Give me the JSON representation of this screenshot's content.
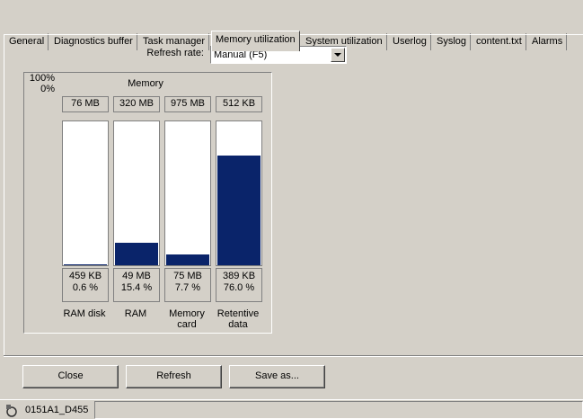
{
  "tabs": [
    {
      "label": "General",
      "selected": false
    },
    {
      "label": "Diagnostics buffer",
      "selected": false
    },
    {
      "label": "Task manager",
      "selected": false
    },
    {
      "label": "Memory utilization",
      "selected": true
    },
    {
      "label": "System utilization",
      "selected": false
    },
    {
      "label": "Userlog",
      "selected": false
    },
    {
      "label": "Syslog",
      "selected": false
    },
    {
      "label": "content.txt",
      "selected": false
    },
    {
      "label": "Alarms",
      "selected": false
    }
  ],
  "refresh_rate": {
    "label": "Refresh rate:",
    "value": "Manual (F5)"
  },
  "memory": {
    "title": "Memory",
    "scale": [
      {
        "value": 100,
        "label": "100%"
      },
      {
        "value": 0,
        "label": "0%"
      }
    ],
    "devices": [
      {
        "capacity": "76 MB",
        "used": "459 KB",
        "used_percent": {
          "value": 0.6,
          "label": "0.6 %"
        },
        "name": [
          "RAM disk"
        ]
      },
      {
        "capacity": "320 MB",
        "used": "49 MB",
        "used_percent": {
          "value": 15.4,
          "label": "15.4 %"
        },
        "name": [
          "RAM"
        ]
      },
      {
        "capacity": "975 MB",
        "used": "75 MB",
        "used_percent": {
          "value": 7.7,
          "label": "7.7 %"
        },
        "name": [
          "Memory",
          "card"
        ]
      },
      {
        "capacity": "512 KB",
        "used": "389 KB",
        "used_percent": {
          "value": 76.0,
          "label": "76.0 %"
        },
        "name": [
          "Retentive",
          "data"
        ]
      }
    ]
  },
  "buttons": [
    "Close",
    "Refresh",
    "Save as..."
  ],
  "status": "0151A1_D455"
}
